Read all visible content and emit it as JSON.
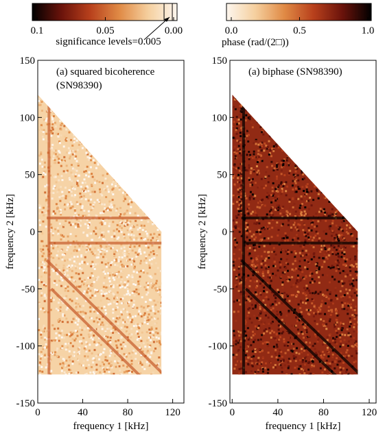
{
  "chart_data": [
    {
      "type": "heatmap",
      "title": "(a) squared bicoherence",
      "subtitle": "(SN98390)",
      "xlabel": "frequency 1 [kHz]",
      "ylabel": "frequency 2 [kHz]",
      "xlim": [
        0,
        130
      ],
      "ylim": [
        -150,
        150
      ],
      "xticks": [
        0,
        40,
        80,
        120
      ],
      "yticks": [
        -150,
        -100,
        -50,
        0,
        50,
        100,
        150
      ],
      "colormap": [
        "#fdf6ee",
        "#f5cf9e",
        "#e08a45",
        "#b8401c",
        "#6a130b",
        "#000000"
      ],
      "colorbar": {
        "lim": [
          0.1,
          0
        ],
        "ticks": [
          0.1,
          0.05,
          {
            "value": 0,
            "label": "0.00"
          }
        ],
        "annotation": "significance levels=0.005"
      }
    },
    {
      "type": "heatmap",
      "title": "(a) biphase (SN98390)",
      "xlabel": "frequency 1 [kHz]",
      "ylabel": "frequency 2 [kHz]",
      "xlim": [
        -2,
        126
      ],
      "ylim": [
        -150,
        150
      ],
      "xticks": [
        0,
        40,
        80,
        120
      ],
      "yticks": [
        -150,
        -100,
        -50,
        0,
        50,
        100,
        150
      ],
      "colormap": [
        "#fdf6ee",
        "#f5cf9e",
        "#e08a45",
        "#b8401c",
        "#6a130b",
        "#000000"
      ],
      "colorbar": {
        "lim": [
          0,
          1
        ],
        "ticks": [
          {
            "value": 0,
            "label": "0.0"
          },
          0.5,
          {
            "value": 1,
            "label": "1.0"
          }
        ],
        "label": "phase (rad/(2□))"
      }
    }
  ]
}
